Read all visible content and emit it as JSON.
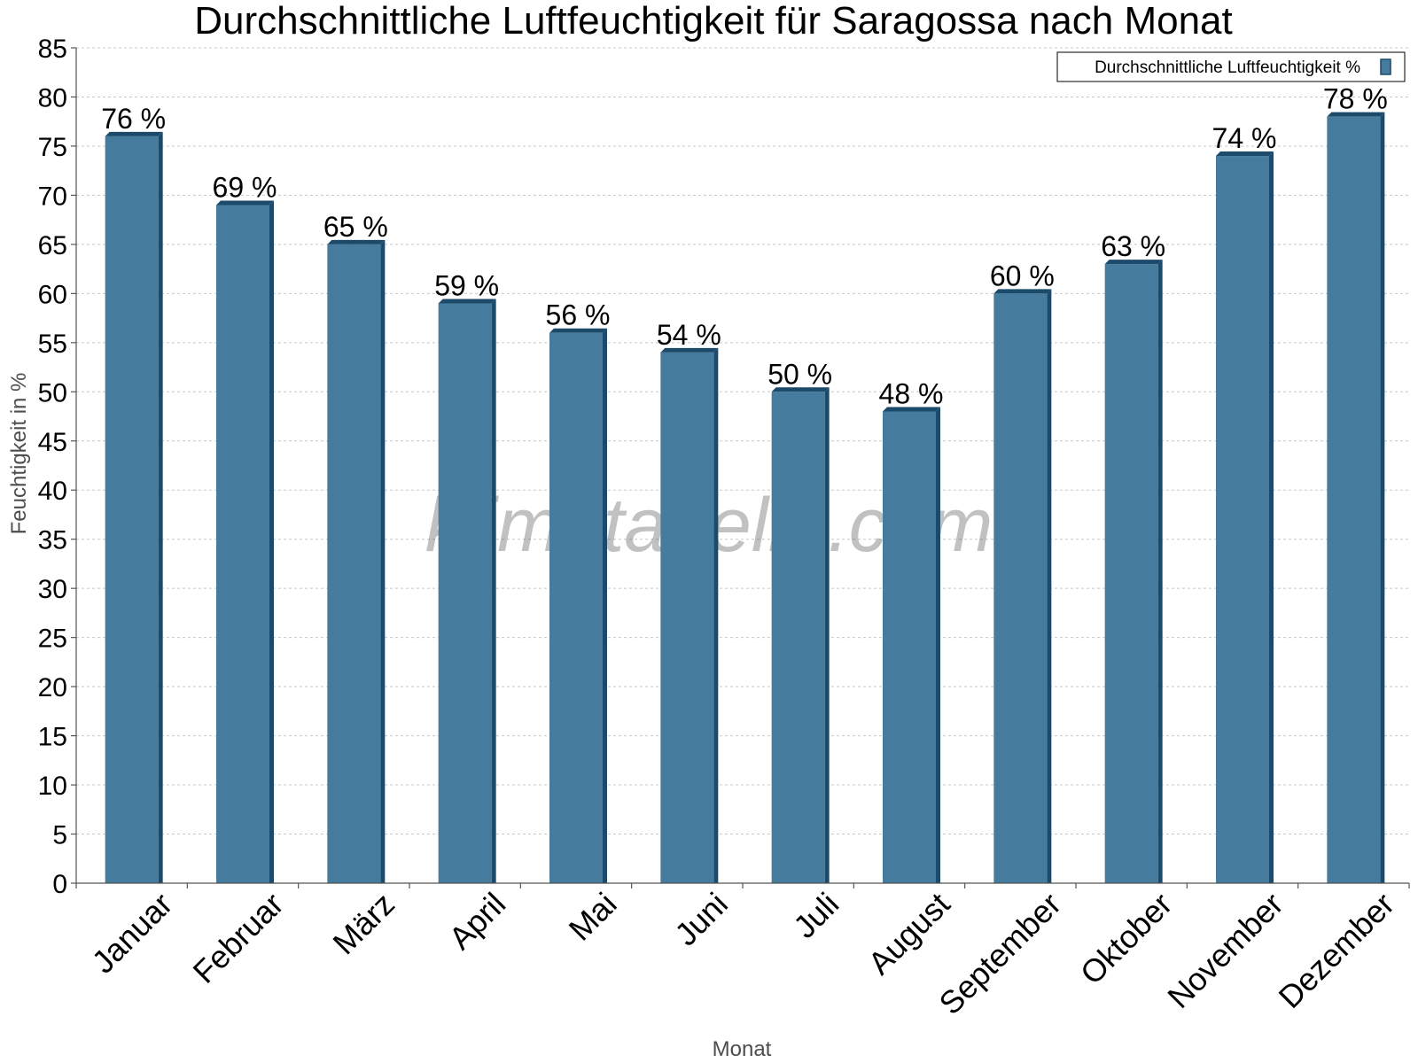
{
  "chart_data": {
    "type": "bar",
    "title": "Durchschnittliche Luftfeuchtigkeit für Saragossa nach Monat",
    "xlabel": "Monat",
    "ylabel": "Feuchtigkeit in %",
    "categories": [
      "Januar",
      "Februar",
      "März",
      "April",
      "Mai",
      "Juni",
      "Juli",
      "August",
      "September",
      "Oktober",
      "November",
      "Dezember"
    ],
    "series": [
      {
        "name": "Durchschnittliche Luftfeuchtigkeit %",
        "values": [
          76,
          69,
          65,
          59,
          56,
          54,
          50,
          48,
          60,
          63,
          74,
          78
        ],
        "value_labels": [
          "76 %",
          "69 %",
          "65 %",
          "59 %",
          "56 %",
          "54 %",
          "50 %",
          "48 %",
          "60 %",
          "63 %",
          "74 %",
          "78 %"
        ],
        "color": "#457b9d"
      }
    ],
    "ylim": [
      0,
      85
    ],
    "yticks": [
      0,
      5,
      10,
      15,
      20,
      25,
      30,
      35,
      40,
      45,
      50,
      55,
      60,
      65,
      70,
      75,
      80,
      85
    ],
    "grid": true,
    "legend_position": "top-right"
  },
  "watermark": "klimatabelle.com",
  "colors": {
    "bar": "#457b9d",
    "bar_dark": "#1c4a6b",
    "grid": "#c8c8c8",
    "axis": "#555555"
  }
}
